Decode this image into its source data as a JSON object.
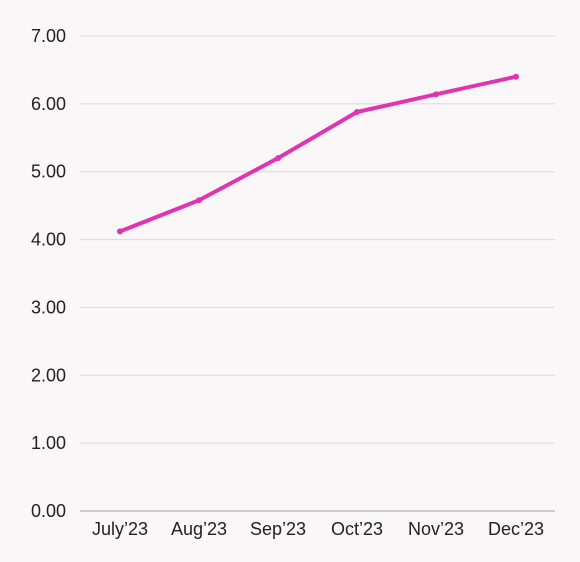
{
  "chart_data": {
    "type": "line",
    "title": "",
    "xlabel": "",
    "ylabel": "",
    "categories": [
      "July’23",
      "Aug’23",
      "Sep’23",
      "Oct’23",
      "Nov’23",
      "Dec’23"
    ],
    "series": [
      {
        "values": [
          4.12,
          4.58,
          5.2,
          5.88,
          6.14,
          6.4
        ],
        "color": "#e035b3"
      }
    ],
    "ylim": [
      0,
      7
    ],
    "yticks": [
      "0.00",
      "1.00",
      "2.00",
      "3.00",
      "4.00",
      "5.00",
      "6.00",
      "7.00"
    ],
    "grid": true,
    "legend": "none"
  }
}
